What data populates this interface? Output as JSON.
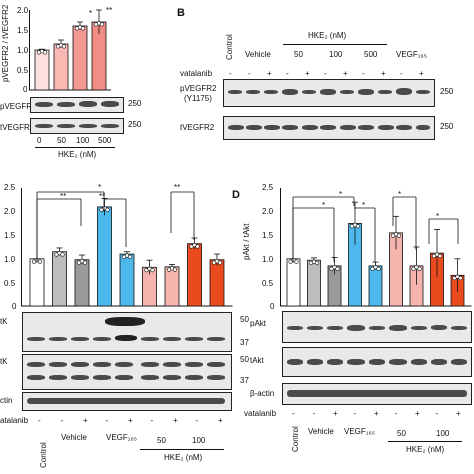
{
  "panels": {
    "A_partial": {
      "ylabel": "pVEGFR2 / tVEGFR2",
      "yticks": [
        "2.0",
        "1.5",
        "1.0",
        "0.5",
        "0"
      ],
      "sig": [
        "*",
        "**"
      ],
      "blot_labels": [
        "pVEGFR2",
        "tVEGFR2"
      ],
      "mw": [
        "250",
        "250"
      ],
      "xlabels": [
        "0",
        "50",
        "100",
        "500"
      ],
      "xtitle": "HKE₂ (nM)"
    },
    "B": {
      "letter": "B",
      "hke_header": "HKE₂ (nM)",
      "col_labels": [
        "Control",
        "Vehicle",
        "50",
        "100",
        "500",
        "VEGF₁₆₅"
      ],
      "vatalanib_label": "vatalanib",
      "vatalanib_signs": [
        "-",
        "-",
        "+",
        "-",
        "+",
        "-",
        "+",
        "-",
        "+",
        "-",
        "+"
      ],
      "blot_labels": [
        "pVEGFR2",
        "(Y1175)",
        "tVEGFR2"
      ],
      "mw": [
        "250",
        "250"
      ]
    },
    "C_partial": {
      "yticks": [
        "2.5",
        "2.0",
        "1.5",
        "1.0",
        "0.5",
        "0"
      ],
      "sig": [
        "*",
        "**",
        "**",
        "**"
      ],
      "blot_labels": [
        "tK",
        "tK",
        "ctin"
      ],
      "mw": [
        "50",
        "37",
        "50",
        "37"
      ],
      "vatalanib_label": "atalanib",
      "vatalanib_signs": [
        "-",
        "-",
        "+",
        "-",
        "+",
        "-",
        "+",
        "-",
        "+"
      ],
      "xlabels": [
        "Control",
        "Vehicle",
        "VEGF₁₆₅",
        "50",
        "100"
      ],
      "xtitle": "HKE₂ (nM)"
    },
    "D": {
      "letter": "D",
      "ylabel": "pAkt / tAkt",
      "yticks": [
        "2.5",
        "2.0",
        "1.5",
        "1.0",
        "0.5",
        "0"
      ],
      "sig": [
        "*",
        "*",
        "*",
        "*",
        "*"
      ],
      "blot_labels": [
        "pAkt",
        "tAkt",
        "β-actin"
      ],
      "vatalanib_label": "vatalanib",
      "vatalanib_signs": [
        "-",
        "-",
        "+",
        "-",
        "+",
        "-",
        "+",
        "-",
        "+"
      ],
      "xlabels": [
        "Control",
        "Vehicle",
        "VEGF₁₆₅",
        "50",
        "100"
      ],
      "xtitle": "HKE₂ (nM)"
    }
  },
  "chart_data": [
    {
      "type": "bar",
      "panel": "A",
      "categories": [
        "0",
        "50",
        "100",
        "500"
      ],
      "values": [
        1.0,
        1.15,
        1.6,
        1.7
      ],
      "errors": [
        0.02,
        0.1,
        0.1,
        0.3
      ],
      "ylim": [
        0,
        2.0
      ],
      "colors": [
        "#fde0de",
        "#f9b8b2",
        "#f49a93",
        "#f28d85"
      ]
    },
    {
      "type": "bar",
      "panel": "C",
      "categories": [
        "Control",
        "Vehicle -",
        "Vehicle +",
        "VEGF165 -",
        "VEGF165 +",
        "50 -",
        "50 +",
        "100 -",
        "100 +"
      ],
      "values": [
        1.0,
        1.15,
        0.98,
        2.1,
        1.1,
        0.82,
        0.83,
        1.32,
        0.98
      ],
      "errors": [
        0.0,
        0.08,
        0.1,
        0.18,
        0.05,
        0.15,
        0.05,
        0.12,
        0.12
      ],
      "ylim": [
        0,
        2.5
      ],
      "colors": [
        "#ffffff",
        "#bdbdbd",
        "#9a9a9a",
        "#4db8ec",
        "#4db8ec",
        "#f5b5ae",
        "#f5b5ae",
        "#ea4b1e",
        "#ea4b1e"
      ]
    },
    {
      "type": "bar",
      "panel": "D",
      "categories": [
        "Control",
        "Vehicle -",
        "Vehicle +",
        "VEGF165 -",
        "VEGF165 +",
        "50 -",
        "50 +",
        "100 -",
        "100 +"
      ],
      "values": [
        1.0,
        0.97,
        0.85,
        1.75,
        0.85,
        1.55,
        0.85,
        1.12,
        0.65
      ],
      "errors": [
        0.0,
        0.05,
        0.18,
        0.45,
        0.08,
        0.35,
        0.4,
        0.5,
        0.35
      ],
      "ylim": [
        0,
        2.5
      ],
      "colors": [
        "#ffffff",
        "#bdbdbd",
        "#9a9a9a",
        "#4db8ec",
        "#4db8ec",
        "#f5b5ae",
        "#f5b5ae",
        "#ea4b1e",
        "#ea4b1e"
      ]
    }
  ]
}
